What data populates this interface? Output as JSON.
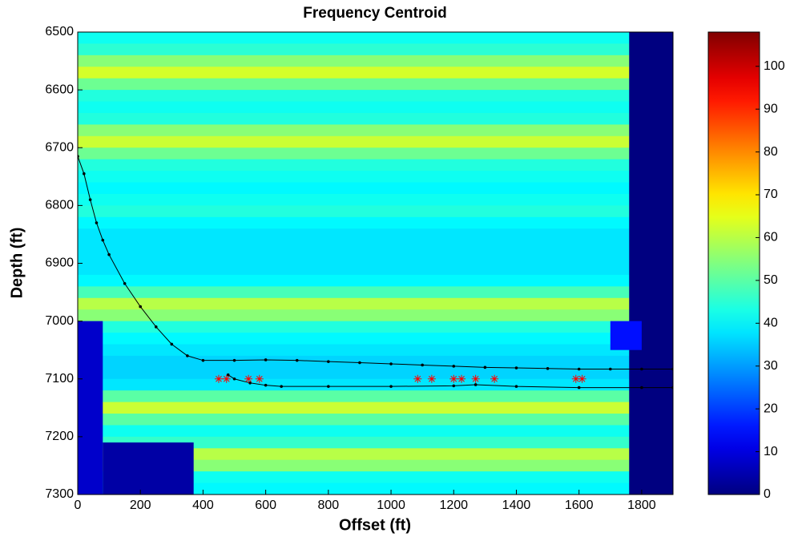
{
  "chart_data": {
    "type": "heatmap",
    "title": "Frequency Centroid",
    "x_label": "Offset (ft)",
    "y_label": "Depth (ft)",
    "xlim": [
      0,
      1900
    ],
    "ylim": [
      7300,
      6500
    ],
    "xticks": [
      0,
      200,
      400,
      600,
      800,
      1000,
      1200,
      1400,
      1600,
      1800
    ],
    "yticks": [
      6500,
      6600,
      6700,
      6800,
      6900,
      7000,
      7100,
      7200,
      7300
    ],
    "heatmap": {
      "depth_bins": [
        6500,
        6520,
        6540,
        6560,
        6580,
        6600,
        6620,
        6640,
        6660,
        6680,
        6700,
        6720,
        6740,
        6760,
        6780,
        6800,
        6820,
        6840,
        6860,
        6880,
        6900,
        6920,
        6940,
        6960,
        6980,
        7000,
        7020,
        7040,
        7060,
        7080,
        7100,
        7120,
        7140,
        7160,
        7180,
        7200,
        7220,
        7240,
        7260,
        7280,
        7300
      ],
      "values": [
        42,
        45,
        55,
        63,
        52,
        44,
        42,
        44,
        55,
        62,
        52,
        44,
        42,
        40,
        42,
        44,
        40,
        38,
        38,
        38,
        38,
        40,
        48,
        60,
        55,
        44,
        40,
        38,
        36,
        36,
        38,
        50,
        62,
        50,
        42,
        46,
        60,
        55,
        42,
        40
      ],
      "patches": [
        {
          "x": [
            1760,
            1900
          ],
          "y": [
            6500,
            7300
          ],
          "value": 0
        },
        {
          "x": [
            0,
            80
          ],
          "y": [
            7000,
            7300
          ],
          "value": 8
        },
        {
          "x": [
            80,
            370
          ],
          "y": [
            7210,
            7300
          ],
          "value": 4
        },
        {
          "x": [
            1700,
            1800
          ],
          "y": [
            7000,
            7050
          ],
          "value": 15
        }
      ]
    },
    "colorbar": {
      "clim": [
        0,
        108
      ],
      "ticks": [
        0,
        10,
        20,
        30,
        40,
        50,
        60,
        70,
        80,
        90,
        100
      ]
    },
    "lines": [
      {
        "color": "#000000",
        "x": [
          0,
          20,
          40,
          60,
          80,
          100,
          150,
          200,
          250,
          300,
          350,
          400,
          500,
          600,
          700,
          800,
          900,
          1000,
          1100,
          1200,
          1300,
          1400,
          1500,
          1600,
          1700,
          1800,
          1900
        ],
        "y": [
          6715,
          6745,
          6790,
          6830,
          6860,
          6885,
          6935,
          6975,
          7010,
          7040,
          7060,
          7068,
          7068,
          7067,
          7068,
          7070,
          7072,
          7074,
          7076,
          7078,
          7080,
          7081,
          7082,
          7083,
          7083,
          7083,
          7083
        ]
      },
      {
        "color": "#000000",
        "x": [
          480,
          500,
          550,
          600,
          650,
          800,
          1000,
          1200,
          1270,
          1400,
          1600,
          1800,
          1900
        ],
        "y": [
          7093,
          7100,
          7107,
          7111,
          7113,
          7113,
          7113,
          7112,
          7110,
          7113,
          7115,
          7115,
          7115
        ]
      }
    ],
    "markers": {
      "color": "#ff0000",
      "x": [
        450,
        475,
        545,
        580,
        1085,
        1130,
        1200,
        1225,
        1270,
        1330,
        1590,
        1610
      ],
      "y": [
        7100,
        7100,
        7100,
        7100,
        7100,
        7100,
        7100,
        7100,
        7100,
        7100,
        7100,
        7100
      ]
    }
  }
}
